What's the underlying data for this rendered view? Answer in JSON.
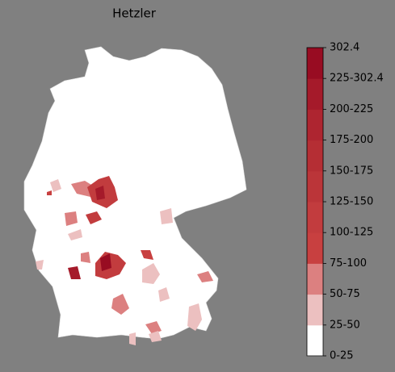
{
  "title": "Hetzler",
  "colorbar": {
    "labels": [
      "0-25",
      "25-50",
      "50-75",
      "75-100",
      "100-125",
      "125-150",
      "150-175",
      "175-200",
      "200-225",
      "225-302.4",
      "302.4"
    ],
    "colors": [
      "#ffffff",
      "#ecc0c0",
      "#dc8080",
      "#c84040",
      "#c23c3e",
      "#bb3539",
      "#b52e34",
      "#ae2530",
      "#a51a2a",
      "#980c22"
    ]
  }
}
